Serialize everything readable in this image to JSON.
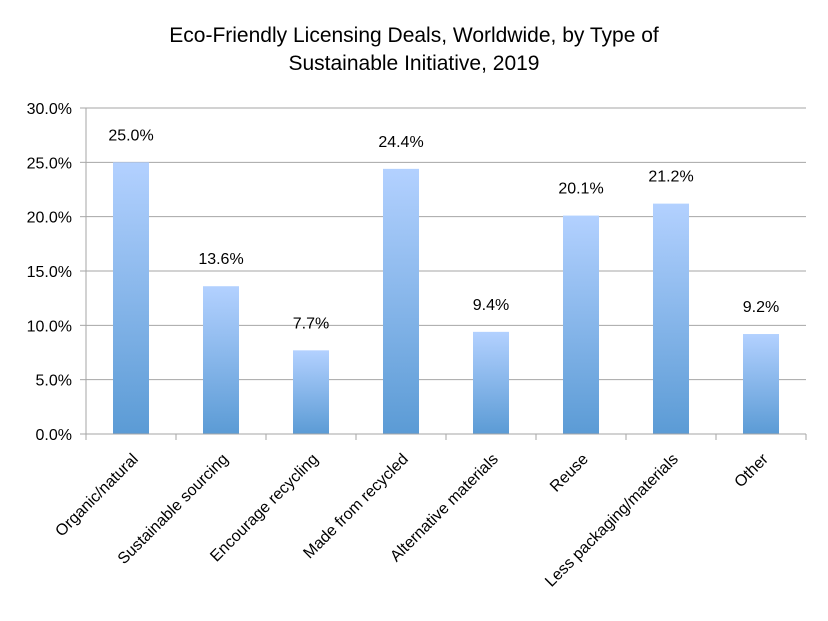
{
  "chart_data": {
    "type": "bar",
    "title": [
      "Eco-Friendly Licensing Deals, Worldwide, by Type of",
      "Sustainable Initiative, 2019"
    ],
    "categories": [
      "Organic/natural",
      "Sustainable sourcing",
      "Encourage recycling",
      "Made from recycled",
      "Alternative materials",
      "Reuse",
      "Less packaging/materials",
      "Other"
    ],
    "values": [
      25.0,
      13.6,
      7.7,
      24.4,
      9.4,
      20.1,
      21.2,
      9.2
    ],
    "data_labels": [
      "25.0%",
      "13.6%",
      "7.7%",
      "24.4%",
      "9.4%",
      "20.1%",
      "21.2%",
      "9.2%"
    ],
    "y_ticks": [
      "0.0%",
      "5.0%",
      "10.0%",
      "15.0%",
      "20.0%",
      "25.0%",
      "30.0%"
    ],
    "ylim": [
      0,
      30
    ],
    "xlabel": "",
    "ylabel": "",
    "grid": true,
    "legend": "none",
    "colors": {
      "bar_top": "#b3d1ff",
      "bar_bottom": "#5b9bd5",
      "grid": "#a6a6a6",
      "axis": "#a6a6a6"
    }
  }
}
